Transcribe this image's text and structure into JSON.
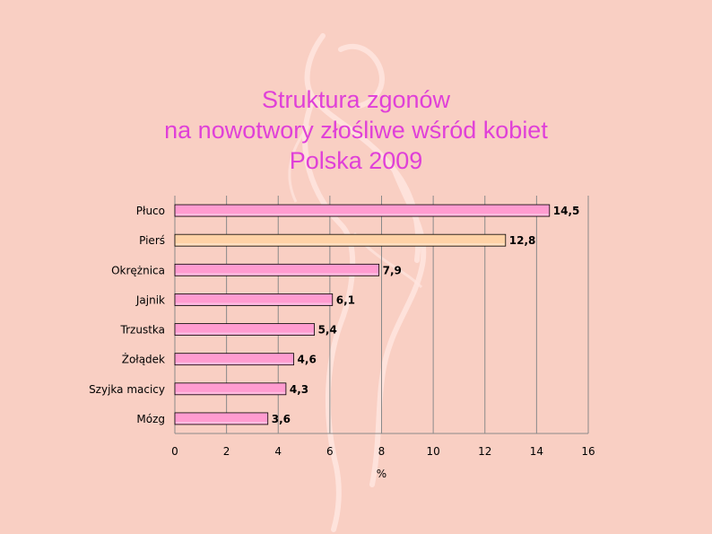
{
  "title_lines": [
    "Struktura zgonów",
    "na nowotwory złośliwe wśród kobiet",
    "Polska 2009"
  ],
  "colors": {
    "background": "#f9cfc3",
    "title": "#e040d8",
    "bar_pink": "#ff9cd0",
    "bar_peach": "#ffd2a6",
    "gridline": "#8a8a8a"
  },
  "chart_data": {
    "type": "bar",
    "orientation": "horizontal",
    "title": "Struktura zgonów na nowotwory złośliwe wśród kobiet Polska 2009",
    "categories": [
      "Płuco",
      "Pierś",
      "Okrężnica",
      "Jajnik",
      "Trzustka",
      "Żołądek",
      "Szyjka macicy",
      "Mózg"
    ],
    "values": [
      14.5,
      12.8,
      7.9,
      6.1,
      5.4,
      4.6,
      4.3,
      3.6
    ],
    "value_labels": [
      "14,5",
      "12,8",
      "7,9",
      "6,1",
      "5,4",
      "4,6",
      "4,3",
      "3,6"
    ],
    "bar_colors": [
      "#ff9cd0",
      "#ffd2a6",
      "#ff9cd0",
      "#ff9cd0",
      "#ff9cd0",
      "#ff9cd0",
      "#ff9cd0",
      "#ff9cd0"
    ],
    "xlabel": "%",
    "ylabel": "",
    "xlim": [
      0,
      16
    ],
    "xticks": [
      0,
      2,
      4,
      6,
      8,
      10,
      12,
      14,
      16
    ],
    "grid": "vertical"
  }
}
